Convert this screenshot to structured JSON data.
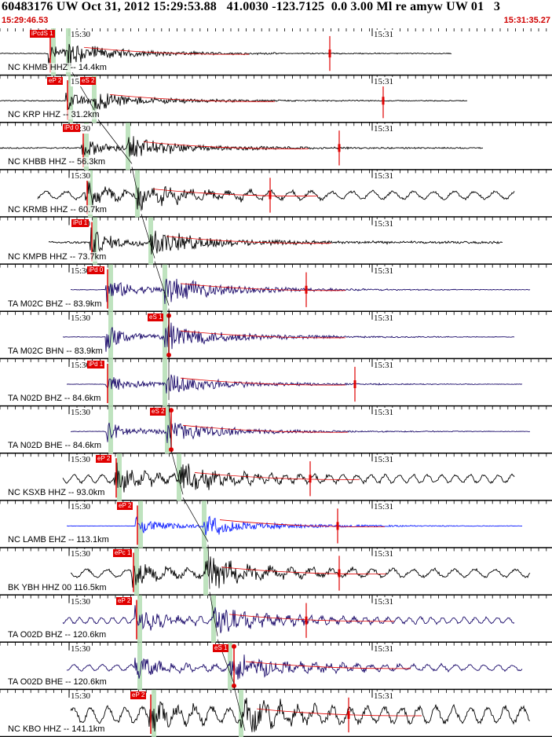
{
  "header": {
    "title": "60483176 UW Oct 31, 2012 15:29:53.88   41.0030 -123.7125  0.0 3.00 Ml re amyw UW 01   3",
    "start_time": "15:29:46.53",
    "end_time": "15:31:35.27"
  },
  "time_ticks": [
    "15:30",
    "15:31"
  ],
  "colors": {
    "pick_bg": "#e00000",
    "marker": "#e00000",
    "window": "#b8e0b8",
    "trace_black": "#000000",
    "trace_navy": "#1a0a6a",
    "trace_blue": "#1020ff"
  },
  "traces": [
    {
      "label": "NC KHMB HHZ -- 14.4km",
      "pick": "iPcdS 1",
      "color": "black",
      "amp": 0.55,
      "noise": 0.08,
      "p": 62,
      "s": 87,
      "osc": false
    },
    {
      "label": "NC KRP HHZ -- 31.2km",
      "pick": "eP 2",
      "pick2": "eS 2",
      "color": "black",
      "amp": 0.5,
      "noise": 0.08,
      "p": 84,
      "s": 120,
      "osc": false
    },
    {
      "label": "NC KHBB HHZ -- 56.3km",
      "pick": "iPd 0",
      "color": "black",
      "amp": 0.6,
      "noise": 0.12,
      "p": 104,
      "s": 163,
      "osc": false
    },
    {
      "label": "NC KRMB HHZ -- 60.7km",
      "pick": "",
      "color": "black",
      "amp": 0.7,
      "noise": 0.2,
      "p": 109,
      "s": 175,
      "osc": true
    },
    {
      "label": "NC KMPB HHZ -- 73.7km",
      "pick": "iPd 1",
      "color": "black",
      "amp": 0.75,
      "noise": 0.2,
      "p": 115,
      "s": 192,
      "osc": false
    },
    {
      "label": "TA M02C BHZ -- 83.9km",
      "pick": "iPd 0",
      "color": "navy",
      "amp": 0.75,
      "noise": 0.05,
      "p": 135,
      "s": 210,
      "osc": false
    },
    {
      "label": "TA M02C BHN -- 83.9km",
      "pick": "eS 1",
      "color": "navy",
      "amp": 0.75,
      "noise": 0.05,
      "p": 135,
      "s": 210,
      "osc": false
    },
    {
      "label": "TA N02D BHZ -- 84.6km",
      "pick": "iPd 1",
      "color": "navy",
      "amp": 0.6,
      "noise": 0.05,
      "p": 135,
      "s": 210,
      "osc": false
    },
    {
      "label": "TA N02D BHE -- 84.6km",
      "pick": "eS 2",
      "color": "navy",
      "amp": 0.6,
      "noise": 0.05,
      "p": 135,
      "s": 213,
      "osc": false
    },
    {
      "label": "NC KSXB HHZ -- 93.0km",
      "pick": "eP 2",
      "color": "black",
      "amp": 0.8,
      "noise": 0.2,
      "p": 146,
      "s": 228,
      "osc": true
    },
    {
      "label": "NC LAMB EHZ -- 113.1km",
      "pick": "eP 2",
      "color": "blue",
      "amp": 0.55,
      "noise": 0.03,
      "p": 173,
      "s": 260,
      "osc": false
    },
    {
      "label": "BK YBH HHZ 00 116.5km",
      "pick": "ePc 1",
      "color": "black",
      "amp": 0.8,
      "noise": 0.2,
      "p": 168,
      "s": 262,
      "osc": true
    },
    {
      "label": "TA O02D BHZ -- 120.6km",
      "pick": "eP 2",
      "color": "navy",
      "amp": 0.75,
      "noise": 0.15,
      "p": 172,
      "s": 272,
      "osc": true
    },
    {
      "label": "TA O02D BHE -- 120.6km",
      "pick": "eS 1",
      "color": "navy",
      "amp": 0.75,
      "noise": 0.15,
      "p": 172,
      "s": 293,
      "osc": true
    },
    {
      "label": "NC KBO HHZ -- 141.1km",
      "pick": "eP 2",
      "color": "black",
      "amp": 0.9,
      "noise": 0.4,
      "p": 190,
      "s": 307,
      "osc": true
    }
  ]
}
